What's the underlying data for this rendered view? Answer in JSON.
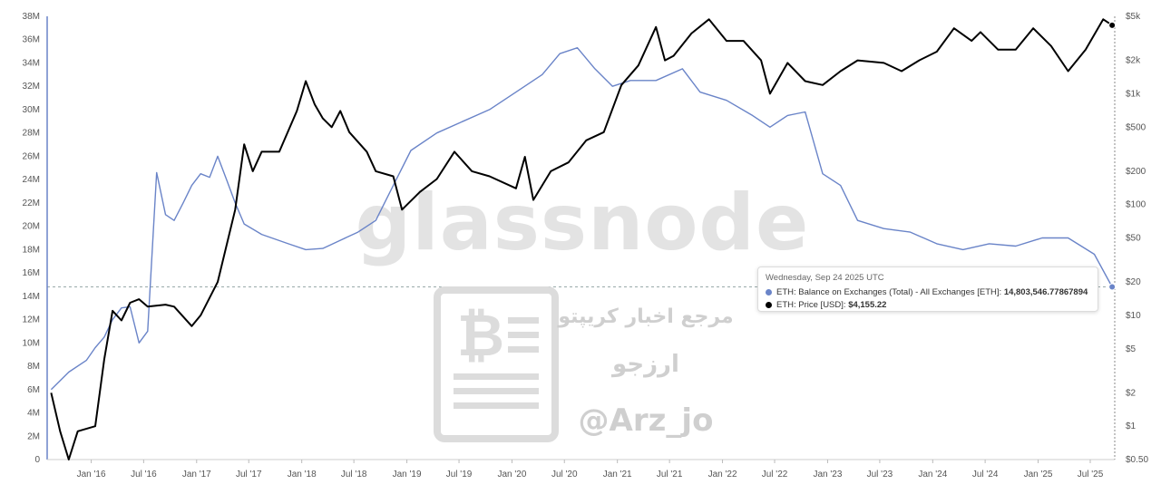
{
  "chart_data": {
    "type": "line",
    "watermark": "glassnode",
    "overlay": {
      "line1": "مرجع اخبار کریپتو",
      "line2": "ارزجو",
      "line3": "@Arz_jo"
    },
    "x_ticks": [
      "Jan '16",
      "Jul '16",
      "Jan '17",
      "Jul '17",
      "Jan '18",
      "Jul '18",
      "Jan '19",
      "Jul '19",
      "Jan '20",
      "Jul '20",
      "Jan '21",
      "Jul '21",
      "Jan '22",
      "Jul '22",
      "Jan '23",
      "Jul '23",
      "Jan '24",
      "Jul '24",
      "Jan '25",
      "Jul '25"
    ],
    "y_left": {
      "ticks": [
        "0",
        "2M",
        "4M",
        "6M",
        "8M",
        "10M",
        "12M",
        "14M",
        "16M",
        "18M",
        "20M",
        "22M",
        "24M",
        "26M",
        "28M",
        "30M",
        "32M",
        "34M",
        "36M",
        "38M"
      ],
      "range": [
        0,
        38000000
      ]
    },
    "y_right": {
      "scale": "log",
      "ticks": [
        "$0.50",
        "$1",
        "$2",
        "$5",
        "$10",
        "$20",
        "$50",
        "$100",
        "$200",
        "$500",
        "$1k",
        "$2k",
        "$5k"
      ],
      "values": [
        0.5,
        1,
        2,
        5,
        10,
        20,
        50,
        100,
        200,
        500,
        1000,
        2000,
        5000
      ],
      "range": [
        0.5,
        5000
      ]
    },
    "series": [
      {
        "name": "ETH: Balance on Exchanges (Total) - All Exchanges [ETH]",
        "color": "#6a84c8",
        "points": [
          [
            "2015-08",
            6.0
          ],
          [
            "2015-10",
            7.5
          ],
          [
            "2015-12",
            8.5
          ],
          [
            "2016-01",
            9.6
          ],
          [
            "2016-02",
            10.5
          ],
          [
            "2016-03",
            12.0
          ],
          [
            "2016-04",
            13.0
          ],
          [
            "2016-05",
            13.1
          ],
          [
            "2016-06",
            10.0
          ],
          [
            "2016-07",
            11.0
          ],
          [
            "2016-08",
            24.6
          ],
          [
            "2016-09",
            21.0
          ],
          [
            "2016-10",
            20.5
          ],
          [
            "2016-11",
            22.0
          ],
          [
            "2016-12",
            23.5
          ],
          [
            "2017-01",
            24.5
          ],
          [
            "2017-02",
            24.2
          ],
          [
            "2017-03",
            26.0
          ],
          [
            "2017-04",
            24.0
          ],
          [
            "2017-05",
            22.0
          ],
          [
            "2017-06",
            20.2
          ],
          [
            "2017-08",
            19.3
          ],
          [
            "2017-11",
            18.5
          ],
          [
            "2018-01",
            18.0
          ],
          [
            "2018-03",
            18.1
          ],
          [
            "2018-05",
            18.8
          ],
          [
            "2018-07",
            19.5
          ],
          [
            "2018-09",
            20.5
          ],
          [
            "2018-11",
            23.5
          ],
          [
            "2019-01",
            26.5
          ],
          [
            "2019-04",
            28.0
          ],
          [
            "2019-07",
            29.0
          ],
          [
            "2019-10",
            30.0
          ],
          [
            "2020-01",
            31.5
          ],
          [
            "2020-04",
            33.0
          ],
          [
            "2020-06",
            34.8
          ],
          [
            "2020-08",
            35.3
          ],
          [
            "2020-10",
            33.5
          ],
          [
            "2020-12",
            32.0
          ],
          [
            "2021-02",
            32.5
          ],
          [
            "2021-05",
            32.5
          ],
          [
            "2021-08",
            33.5
          ],
          [
            "2021-10",
            31.5
          ],
          [
            "2022-01",
            30.8
          ],
          [
            "2022-04",
            29.5
          ],
          [
            "2022-06",
            28.5
          ],
          [
            "2022-08",
            29.5
          ],
          [
            "2022-10",
            29.8
          ],
          [
            "2022-12",
            24.5
          ],
          [
            "2023-02",
            23.5
          ],
          [
            "2023-04",
            20.5
          ],
          [
            "2023-07",
            19.8
          ],
          [
            "2023-10",
            19.5
          ],
          [
            "2024-01",
            18.5
          ],
          [
            "2024-04",
            18.0
          ],
          [
            "2024-07",
            18.5
          ],
          [
            "2024-10",
            18.3
          ],
          [
            "2025-01",
            19.0
          ],
          [
            "2025-04",
            19.0
          ],
          [
            "2025-07",
            17.6
          ],
          [
            "2025-09",
            14.8
          ]
        ]
      },
      {
        "name": "ETH: Price [USD]",
        "color": "#000000",
        "points": [
          [
            "2015-08",
            2.0
          ],
          [
            "2015-09",
            0.9
          ],
          [
            "2015-10",
            0.5
          ],
          [
            "2015-11",
            0.9
          ],
          [
            "2016-01",
            1.0
          ],
          [
            "2016-02",
            4.0
          ],
          [
            "2016-03",
            11.0
          ],
          [
            "2016-04",
            9.0
          ],
          [
            "2016-05",
            13.0
          ],
          [
            "2016-06",
            14.0
          ],
          [
            "2016-07",
            12.0
          ],
          [
            "2016-09",
            12.5
          ],
          [
            "2016-10",
            12.0
          ],
          [
            "2016-12",
            8.0
          ],
          [
            "2017-01",
            10.0
          ],
          [
            "2017-03",
            20.0
          ],
          [
            "2017-05",
            90.0
          ],
          [
            "2017-06",
            350.0
          ],
          [
            "2017-07",
            200.0
          ],
          [
            "2017-08",
            300.0
          ],
          [
            "2017-10",
            300.0
          ],
          [
            "2017-12",
            700.0
          ],
          [
            "2018-01",
            1300.0
          ],
          [
            "2018-02",
            800.0
          ],
          [
            "2018-03",
            600.0
          ],
          [
            "2018-04",
            500.0
          ],
          [
            "2018-05",
            700.0
          ],
          [
            "2018-06",
            450.0
          ],
          [
            "2018-08",
            300.0
          ],
          [
            "2018-09",
            200.0
          ],
          [
            "2018-11",
            180.0
          ],
          [
            "2018-12",
            90.0
          ],
          [
            "2019-02",
            130.0
          ],
          [
            "2019-04",
            170.0
          ],
          [
            "2019-06",
            300.0
          ],
          [
            "2019-08",
            200.0
          ],
          [
            "2019-10",
            180.0
          ],
          [
            "2020-01",
            140.0
          ],
          [
            "2020-02",
            270.0
          ],
          [
            "2020-03",
            110.0
          ],
          [
            "2020-05",
            200.0
          ],
          [
            "2020-07",
            240.0
          ],
          [
            "2020-09",
            380.0
          ],
          [
            "2020-11",
            450.0
          ],
          [
            "2021-01",
            1200.0
          ],
          [
            "2021-03",
            1800.0
          ],
          [
            "2021-05",
            4000.0
          ],
          [
            "2021-06",
            2000.0
          ],
          [
            "2021-07",
            2200.0
          ],
          [
            "2021-09",
            3500.0
          ],
          [
            "2021-11",
            4700.0
          ],
          [
            "2022-01",
            3000.0
          ],
          [
            "2022-03",
            3000.0
          ],
          [
            "2022-05",
            2000.0
          ],
          [
            "2022-06",
            1000.0
          ],
          [
            "2022-08",
            1900.0
          ],
          [
            "2022-10",
            1300.0
          ],
          [
            "2022-12",
            1200.0
          ],
          [
            "2023-02",
            1600.0
          ],
          [
            "2023-04",
            2000.0
          ],
          [
            "2023-07",
            1900.0
          ],
          [
            "2023-09",
            1600.0
          ],
          [
            "2023-11",
            2000.0
          ],
          [
            "2024-01",
            2400.0
          ],
          [
            "2024-03",
            3900.0
          ],
          [
            "2024-05",
            3000.0
          ],
          [
            "2024-06",
            3600.0
          ],
          [
            "2024-08",
            2500.0
          ],
          [
            "2024-10",
            2500.0
          ],
          [
            "2024-12",
            3900.0
          ],
          [
            "2025-02",
            2700.0
          ],
          [
            "2025-04",
            1600.0
          ],
          [
            "2025-06",
            2500.0
          ],
          [
            "2025-08",
            4700.0
          ],
          [
            "2025-09",
            4155.22
          ]
        ]
      }
    ],
    "tooltip": {
      "date": "Wednesday, Sep 24 2025 UTC",
      "balance_label": "ETH: Balance on Exchanges (Total) - All Exchanges [ETH]:",
      "balance_value": "14,803,546.77867894",
      "price_label": "ETH: Price [USD]:",
      "price_value": "$4,155.22"
    }
  }
}
